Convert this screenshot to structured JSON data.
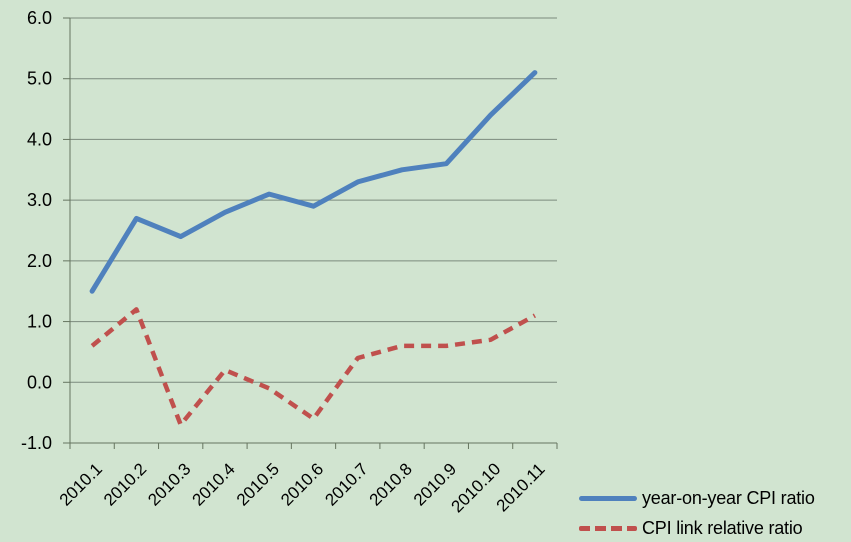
{
  "chart_data": {
    "type": "line",
    "categories": [
      "2010.1",
      "2010.2",
      "2010.3",
      "2010.4",
      "2010.5",
      "2010.6",
      "2010.7",
      "2010.8",
      "2010.9",
      "2010.10",
      "2010.11"
    ],
    "series": [
      {
        "name": "year-on-year CPI ratio",
        "values": [
          1.5,
          2.7,
          2.4,
          2.8,
          3.1,
          2.9,
          3.3,
          3.5,
          3.6,
          4.4,
          5.1
        ],
        "color": "#4f81bd",
        "line_style": "solid"
      },
      {
        "name": "CPI link relative ratio",
        "values": [
          0.6,
          1.2,
          -0.7,
          0.2,
          -0.1,
          -0.6,
          0.4,
          0.6,
          0.6,
          0.7,
          1.1
        ],
        "color": "#c0504d",
        "line_style": "dashed"
      }
    ],
    "ylim": [
      -1.0,
      6.0
    ],
    "yticks": {
      "values": [
        -1,
        0,
        1,
        2,
        3,
        4,
        5,
        6
      ],
      "labels": [
        "-1.0",
        "0.0",
        "1.0",
        "2.0",
        "3.0",
        "4.0",
        "5.0",
        "6.0"
      ]
    },
    "grid": "horizontal",
    "legend_position": "bottom-right"
  },
  "colors": {
    "background": "#d1e4d0",
    "gridline": "#7b8a7d",
    "axis": "#65745f",
    "text": "#000000",
    "series_blue": "#4f81bd",
    "series_red": "#c0504d"
  }
}
